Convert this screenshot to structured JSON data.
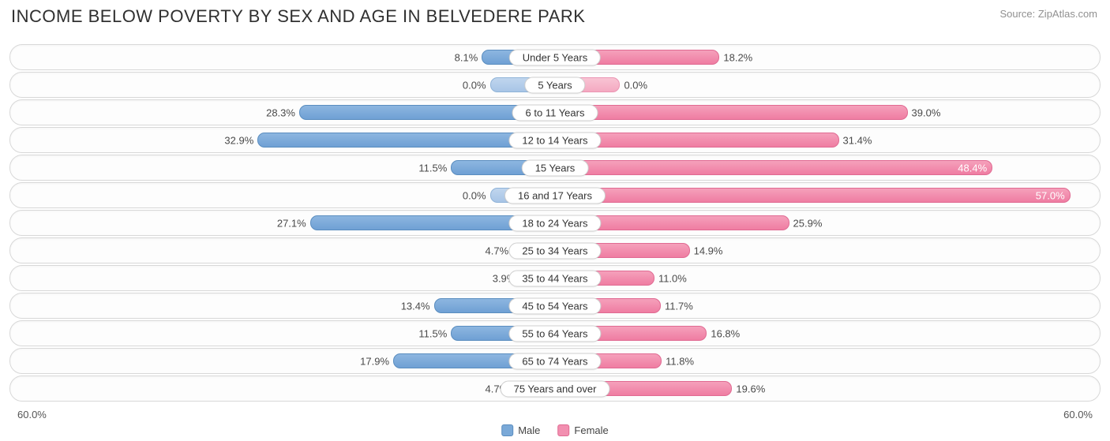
{
  "title": "INCOME BELOW POVERTY BY SEX AND AGE IN BELVEDERE PARK",
  "source": "Source: ZipAtlas.com",
  "axis_max": 60.0,
  "axis_label_left": "60.0%",
  "axis_label_right": "60.0%",
  "legend": {
    "male": "Male",
    "female": "Female"
  },
  "zero_bar_visual_pct": 12.0,
  "colors": {
    "male_bar": "#6fa0d4",
    "male_zero": "#a8c5e6",
    "female_bar": "#ef7da2",
    "female_zero": "#f4a9c1",
    "row_border": "#d8d8d8",
    "background": "#ffffff",
    "title_text": "#303030",
    "source_text": "#909090",
    "label_text": "#4a4a4a",
    "center_label_border": "#cfcfcf"
  },
  "typography": {
    "title_fontsize": 22,
    "source_fontsize": 13,
    "label_fontsize": 13,
    "center_label_fontsize": 13,
    "legend_fontsize": 13
  },
  "rows": [
    {
      "label": "Under 5 Years",
      "male": 8.1,
      "female": 18.2
    },
    {
      "label": "5 Years",
      "male": 0.0,
      "female": 0.0
    },
    {
      "label": "6 to 11 Years",
      "male": 28.3,
      "female": 39.0
    },
    {
      "label": "12 to 14 Years",
      "male": 32.9,
      "female": 31.4
    },
    {
      "label": "15 Years",
      "male": 11.5,
      "female": 48.4
    },
    {
      "label": "16 and 17 Years",
      "male": 0.0,
      "female": 57.0
    },
    {
      "label": "18 to 24 Years",
      "male": 27.1,
      "female": 25.9
    },
    {
      "label": "25 to 34 Years",
      "male": 4.7,
      "female": 14.9
    },
    {
      "label": "35 to 44 Years",
      "male": 3.9,
      "female": 11.0
    },
    {
      "label": "45 to 54 Years",
      "male": 13.4,
      "female": 11.7
    },
    {
      "label": "55 to 64 Years",
      "male": 11.5,
      "female": 16.8
    },
    {
      "label": "65 to 74 Years",
      "male": 17.9,
      "female": 11.8
    },
    {
      "label": "75 Years and over",
      "male": 4.7,
      "female": 19.6
    }
  ]
}
